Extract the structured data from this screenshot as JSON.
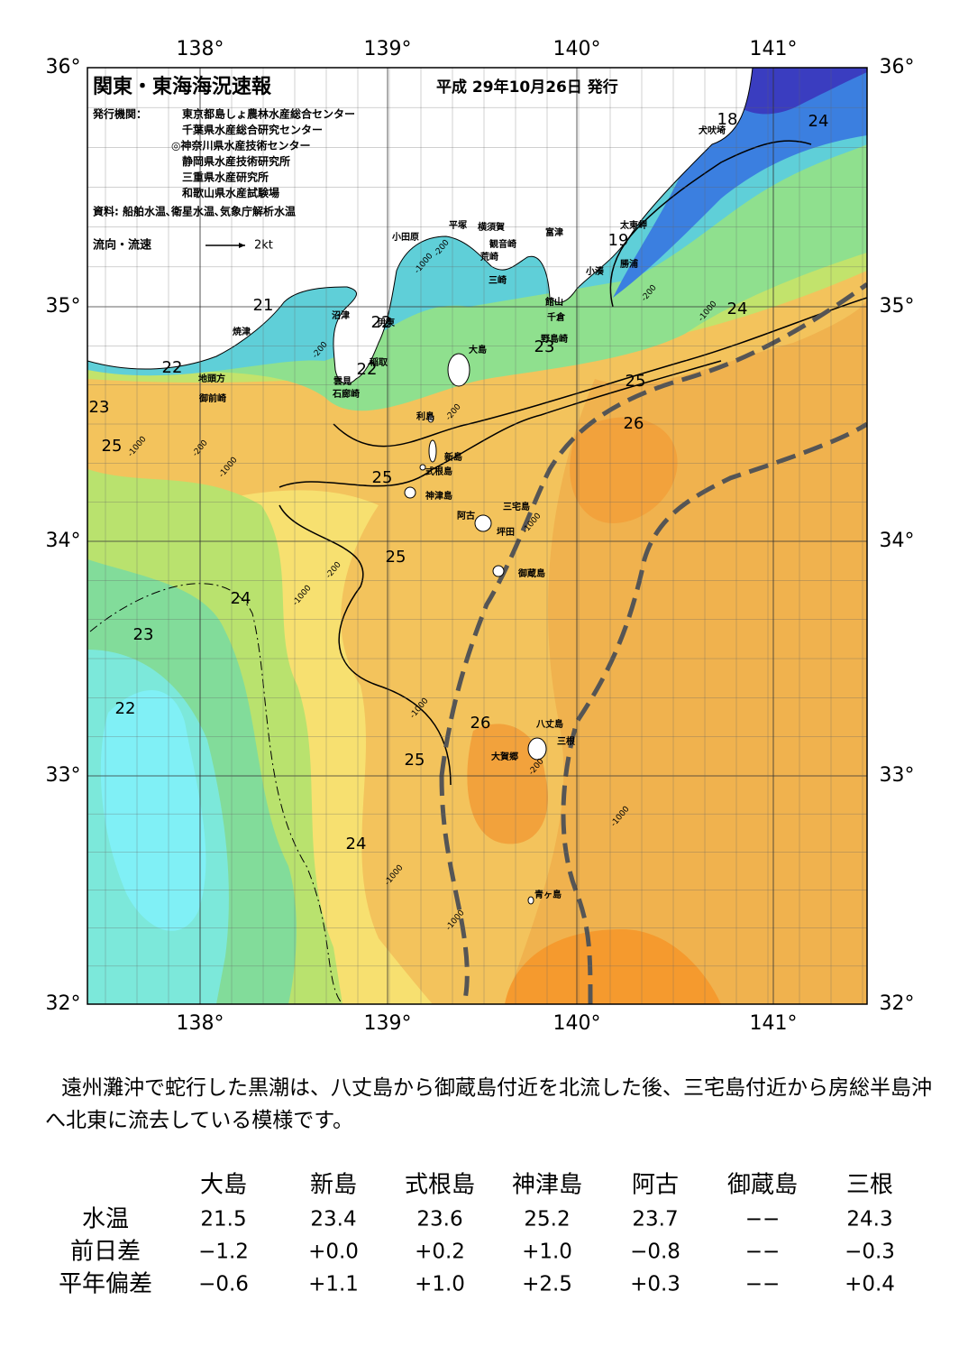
{
  "map": {
    "title": "関東・東海海況速報",
    "issued": "平成 29年10月26日 発行",
    "publisher_label": "発行機関：",
    "publishers": [
      "東京都島しょ農林水産総合センター",
      "千葉県水産総合研究センター",
      "◎神奈川県水産技術センター",
      "静岡県水産技術研究所",
      "三重県水産研究所",
      "和歌山県水産試験場"
    ],
    "source": "資料: 船舶水温､衛星水温､気象庁解析水温",
    "flow_legend": {
      "label": "流向・流速",
      "unit": "2kt"
    },
    "lat_labels": [
      "36°",
      "35°",
      "34°",
      "33°",
      "32°"
    ],
    "lon_labels": [
      "138°",
      "139°",
      "140°",
      "141°"
    ],
    "places": [
      "犬吠埼",
      "太東岬",
      "勝浦",
      "小湊",
      "富津",
      "館山",
      "千倉",
      "野島崎",
      "横須賀",
      "観音崎",
      "荒崎",
      "三崎",
      "平塚",
      "小田原",
      "沼津",
      "伊東",
      "稲取",
      "雲見",
      "石廊崎",
      "焼津",
      "地頭方",
      "御前崎",
      "大島",
      "利島",
      "新島",
      "式根島",
      "神津島",
      "三宅島",
      "阿古",
      "坪田",
      "御蔵島",
      "八丈島",
      "三根",
      "大賀郷",
      "青ヶ島"
    ],
    "temperature_labels": [
      "18",
      "24",
      "19",
      "21",
      "22",
      "24",
      "23",
      "22",
      "22",
      "23",
      "25",
      "26",
      "25",
      "25",
      "25",
      "24",
      "23",
      "22",
      "26",
      "25",
      "24"
    ],
    "depth_labels": [
      "-200",
      "-1000",
      "-200",
      "-200",
      "-1000",
      "-200",
      "-1000",
      "-200",
      "-1000",
      "-1000",
      "-1000",
      "-200",
      "-1000",
      "-1000",
      "-1000",
      "-1000",
      "-200"
    ]
  },
  "summary": "遠州灘沖で蛇行した黒潮は、八丈島から御蔵島付近を北流した後、三宅島付近から房総半島沖へ北東に流去している模様です。",
  "table": {
    "columns": [
      "大島",
      "新島",
      "式根島",
      "神津島",
      "阿古",
      "御蔵島",
      "三根"
    ],
    "rows": [
      {
        "label": "水温",
        "cells": [
          "21.5",
          "23.4",
          "23.6",
          "25.2",
          "23.7",
          "−−",
          "24.3"
        ]
      },
      {
        "label": "前日差",
        "cells": [
          "−1.2",
          "+0.0",
          "+0.2",
          "+1.0",
          "−0.8",
          "−−",
          "−0.3"
        ]
      },
      {
        "label": "平年偏差",
        "cells": [
          "−0.6",
          "+1.1",
          "+1.0",
          "+2.5",
          "+0.3",
          "−−",
          "+0.4"
        ]
      }
    ]
  }
}
